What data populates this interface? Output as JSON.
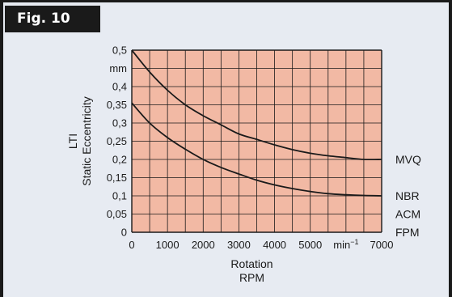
{
  "figure": {
    "label": "Fig. 10"
  },
  "chart_data": {
    "type": "line",
    "title": "",
    "xlabel": [
      "Rotation",
      "RPM"
    ],
    "ylabel": [
      "LTI",
      "Static Eccentricity"
    ],
    "xlim": [
      0,
      7000
    ],
    "ylim": [
      0,
      0.5
    ],
    "grid": true,
    "x_ticks": [
      "0",
      "1000",
      "2000",
      "3000",
      "4000",
      "5000",
      "min⁻¹",
      "7000"
    ],
    "y_ticks": [
      "0",
      "0,05",
      "0,1",
      "0,15",
      "0,2",
      "0,25",
      "0,3",
      "0,35",
      "0,4",
      "mm",
      "0,5"
    ],
    "series": [
      {
        "name": "MVQ",
        "x": [
          0,
          500,
          1000,
          1500,
          2000,
          2500,
          3000,
          3500,
          4000,
          4500,
          5000,
          5500,
          6000,
          6500,
          7000
        ],
        "y": [
          0.5,
          0.44,
          0.39,
          0.35,
          0.32,
          0.295,
          0.27,
          0.255,
          0.24,
          0.227,
          0.217,
          0.21,
          0.205,
          0.2,
          0.2
        ]
      },
      {
        "name": "NBR",
        "x": [
          0,
          500,
          1000,
          1500,
          2000,
          2500,
          3000,
          3500,
          4000,
          4500,
          5000,
          5500,
          6000,
          6500,
          7000
        ],
        "y": [
          0.355,
          0.3,
          0.26,
          0.228,
          0.2,
          0.178,
          0.16,
          0.143,
          0.13,
          0.12,
          0.112,
          0.106,
          0.103,
          0.101,
          0.1
        ]
      }
    ],
    "series_labels": [
      {
        "text": "MVQ",
        "y": 0.2
      },
      {
        "text": "NBR",
        "y": 0.1
      },
      {
        "text": "ACM",
        "y": 0.05
      },
      {
        "text": "FPM",
        "y": 0.0
      }
    ],
    "colors": {
      "plot_fill": "#f2b9a4",
      "grid": "#1a1a1a",
      "curve": "#1a1a1a",
      "background": "#e7ebf2"
    }
  }
}
